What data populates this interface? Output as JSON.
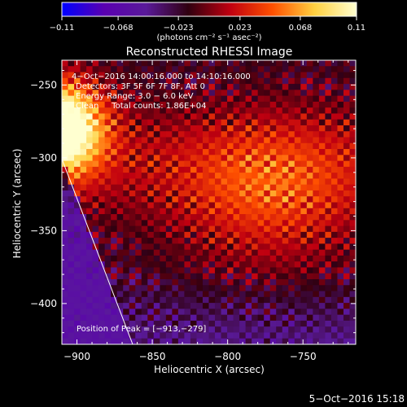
{
  "chart_data": {
    "type": "heatmap",
    "title": "Reconstructed RHESSI Image",
    "xlabel": "Heliocentric X (arcsec)",
    "ylabel": "Heliocentric Y (arcsec)",
    "xlim": [
      -910,
      -715
    ],
    "ylim": [
      -428,
      -233
    ],
    "x_ticks": [
      -900,
      -850,
      -800,
      -750
    ],
    "y_ticks": [
      -400,
      -350,
      -300,
      -250
    ],
    "x_tick_labels": [
      "−900",
      "−850",
      "−800",
      "−750"
    ],
    "y_tick_labels": [
      "−400",
      "−350",
      "−300",
      "−250"
    ],
    "colorbar": {
      "range": [
        -0.11,
        0.11
      ],
      "ticks": [
        -0.11,
        -0.068,
        -0.023,
        0.023,
        0.068,
        0.11
      ],
      "tick_labels": [
        "−0.11",
        "−0.068",
        "−0.023",
        "0.023",
        "0.068",
        "0.11"
      ],
      "colormap": [
        "#0000ff",
        "#5a00b0",
        "#5a1a9a",
        "#300010",
        "#c00010",
        "#ff5000",
        "#ffd040",
        "#ffffd0"
      ]
    },
    "unit_label": "(photons cm⁻² s⁻¹ asec⁻²)",
    "annotations": [
      "4−Oct−2016 14:00:16.000 to 14:10:16.000",
      "Detectors: 3F 5F 6F 7F 8F, Att 0",
      "Energy Range: 3.0 − 6.0 keV",
      "Clean     Total counts: 1.86E+04"
    ],
    "peak_label": "Position of Peak = [−913,−279]",
    "peak": [
      -913,
      -279
    ],
    "limb_line": [
      [
        -911,
        -298
      ],
      [
        -863,
        -428
      ]
    ],
    "footer_date": "5−Oct−2016 15:18"
  }
}
